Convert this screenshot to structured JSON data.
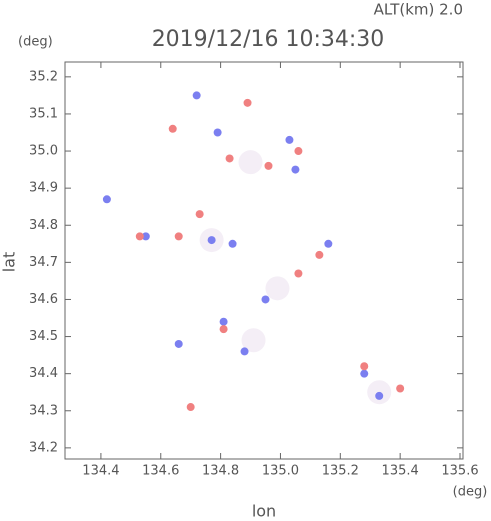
{
  "chart_data": {
    "type": "scatter",
    "title": "2019/12/16 10:34:30",
    "subtitle": "ALT(km) 2.0",
    "x_label": "lon",
    "y_label": "lat",
    "x_unit": "(deg)",
    "y_unit": "(deg)",
    "xlim": [
      134.28,
      135.61
    ],
    "ylim": [
      34.17,
      35.24
    ],
    "xticks": [
      134.4,
      134.6,
      134.8,
      {
        "value": 135,
        "label": "135.0"
      },
      135.2,
      135.4,
      135.6
    ],
    "yticks": [
      34.2,
      34.3,
      34.4,
      34.5,
      34.6,
      34.7,
      34.8,
      34.9,
      {
        "value": 35,
        "label": "35.0"
      },
      35.1,
      35.2
    ],
    "series": [
      {
        "color": "#f4eef6",
        "x": [
          134.91,
          135.33,
          134.99,
          134.77,
          134.9
        ],
        "values": [
          34.49,
          34.35,
          34.63,
          34.76,
          34.97
        ]
      },
      {
        "color": "#7b7ff0",
        "x": [
          134.42,
          134.72,
          134.79,
          134.84,
          134.77,
          134.55,
          135.28,
          135.33,
          135.03,
          135.05,
          135.16,
          134.66,
          134.88,
          134.95,
          134.81
        ],
        "values": [
          34.87,
          35.15,
          35.05,
          34.75,
          34.76,
          34.77,
          34.4,
          34.34,
          35.03,
          34.95,
          34.75,
          34.48,
          34.46,
          34.6,
          34.54
        ]
      },
      {
        "color": "#f08080",
        "x": [
          134.64,
          134.89,
          134.7,
          135.28,
          135.4,
          135.06,
          134.83,
          134.96,
          134.81,
          134.73,
          134.66,
          135.13,
          134.53,
          135.06
        ],
        "values": [
          35.06,
          35.13,
          34.31,
          34.42,
          34.36,
          35.0,
          34.98,
          34.96,
          34.52,
          34.83,
          34.77,
          34.72,
          34.77,
          34.67
        ]
      }
    ]
  }
}
